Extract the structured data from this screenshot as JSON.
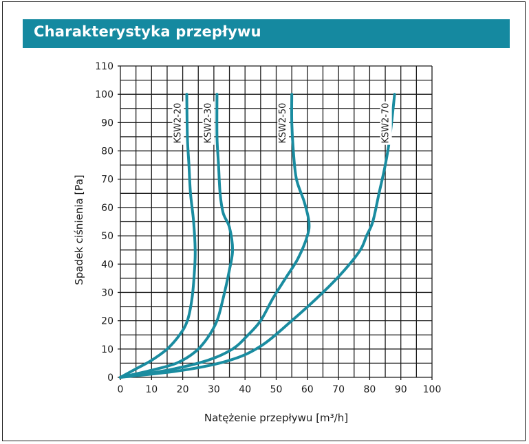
{
  "header": {
    "title": "Charakterystyka przepływu"
  },
  "colors": {
    "accent": "#1589a0",
    "curve": "#1a8ca0",
    "grid": "#1a1a1a"
  },
  "chart_data": {
    "type": "line",
    "title": "",
    "xlabel": "Natężenie przepływu [m³/h]",
    "ylabel": "Spadek ciśnienia [Pa]",
    "xlim": [
      0,
      100
    ],
    "ylim": [
      0,
      110
    ],
    "xticks": [
      0,
      10,
      20,
      30,
      40,
      50,
      60,
      70,
      80,
      90,
      100
    ],
    "yticks": [
      0,
      10,
      20,
      30,
      40,
      50,
      60,
      70,
      80,
      90,
      100,
      110
    ],
    "grid": true,
    "series": [
      {
        "name": "KSW2-20",
        "points": [
          [
            0,
            0
          ],
          [
            5,
            3
          ],
          [
            10,
            6
          ],
          [
            15,
            10
          ],
          [
            19,
            15
          ],
          [
            21.5,
            20
          ],
          [
            23,
            28
          ],
          [
            23.8,
            38
          ],
          [
            24,
            45
          ],
          [
            23.5,
            55
          ],
          [
            22.5,
            65
          ],
          [
            22,
            75
          ],
          [
            21.5,
            85
          ],
          [
            21.3,
            100
          ]
        ]
      },
      {
        "name": "KSW2-30",
        "points": [
          [
            0,
            0
          ],
          [
            10,
            2.5
          ],
          [
            18,
            5
          ],
          [
            24,
            9
          ],
          [
            28,
            14
          ],
          [
            31,
            20
          ],
          [
            33,
            28
          ],
          [
            35,
            38
          ],
          [
            36,
            45
          ],
          [
            35,
            53
          ],
          [
            33,
            58
          ],
          [
            32,
            65
          ],
          [
            31.5,
            75
          ],
          [
            31,
            85
          ],
          [
            31,
            100
          ]
        ]
      },
      {
        "name": "KSW2-50",
        "points": [
          [
            0,
            0
          ],
          [
            15,
            2.5
          ],
          [
            28,
            6
          ],
          [
            36,
            10
          ],
          [
            41,
            15
          ],
          [
            45,
            20
          ],
          [
            49,
            28
          ],
          [
            53,
            35
          ],
          [
            57,
            42
          ],
          [
            60,
            50
          ],
          [
            60.5,
            55
          ],
          [
            59,
            62
          ],
          [
            56.5,
            70
          ],
          [
            55.5,
            80
          ],
          [
            55,
            90
          ],
          [
            55,
            100
          ]
        ]
      },
      {
        "name": "KSW2-70",
        "points": [
          [
            0,
            0
          ],
          [
            20,
            2.5
          ],
          [
            35,
            6
          ],
          [
            45,
            11
          ],
          [
            55,
            20
          ],
          [
            65,
            30
          ],
          [
            72,
            38
          ],
          [
            77,
            45
          ],
          [
            79,
            50
          ],
          [
            81,
            55
          ],
          [
            83,
            65
          ],
          [
            85,
            75
          ],
          [
            86.5,
            85
          ],
          [
            88,
            100
          ]
        ]
      }
    ]
  }
}
